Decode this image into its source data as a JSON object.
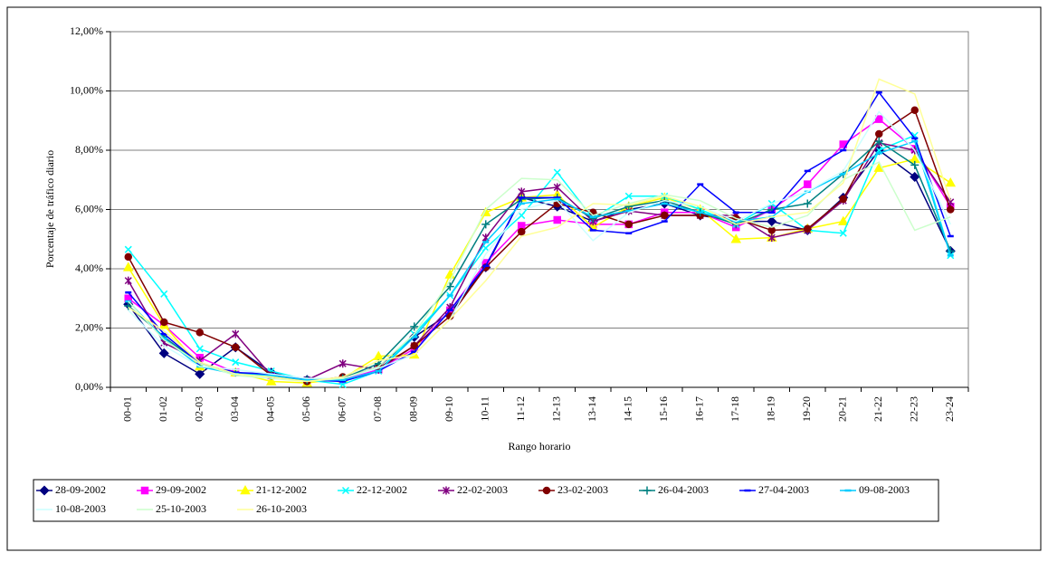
{
  "chart_data": {
    "type": "line",
    "y_label": "Porcentaje de tráfico diario",
    "x_label": "Rango horario",
    "categories": [
      "00-01",
      "01-02",
      "02-03",
      "03-04",
      "04-05",
      "05-06",
      "06-07",
      "07-08",
      "08-09",
      "09-10",
      "10-11",
      "11-12",
      "12-13",
      "13-14",
      "14-15",
      "15-16",
      "16-17",
      "17-18",
      "18-19",
      "19-20",
      "20-21",
      "21-22",
      "22-23",
      "23-24"
    ],
    "ylim": [
      0,
      12
    ],
    "yticks": [
      {
        "value": 0,
        "label": "0,00%"
      },
      {
        "value": 2,
        "label": "2,00%"
      },
      {
        "value": 4,
        "label": "4,00%"
      },
      {
        "value": 6,
        "label": "6,00%"
      },
      {
        "value": 8,
        "label": "8,00%"
      },
      {
        "value": 10,
        "label": "10,00%"
      },
      {
        "value": 12,
        "label": "12,00%"
      }
    ],
    "grid": true,
    "legend": "bottom",
    "series": [
      {
        "name": "28-09-2002",
        "color": "#000080",
        "marker": "diamond",
        "values": [
          2.8,
          1.15,
          0.45,
          1.35,
          0.5,
          0.25,
          0.3,
          0.7,
          1.7,
          2.5,
          4.05,
          6.4,
          6.1,
          5.6,
          6.0,
          6.2,
          5.8,
          5.6,
          5.6,
          5.3,
          6.4,
          8.0,
          7.1,
          4.6
        ]
      },
      {
        "name": "29-09-2002",
        "color": "#ff00ff",
        "marker": "square",
        "values": [
          3.0,
          2.1,
          1.0,
          0.5,
          0.4,
          0.2,
          0.25,
          0.6,
          1.3,
          2.6,
          4.2,
          5.45,
          5.65,
          5.5,
          5.5,
          5.9,
          5.9,
          5.4,
          6.0,
          6.85,
          8.2,
          9.05,
          8.05,
          6.1
        ]
      },
      {
        "name": "21-12-2002",
        "color": "#ffff00",
        "marker": "triangle",
        "values": [
          4.05,
          2.1,
          0.7,
          0.5,
          0.2,
          0.15,
          0.3,
          1.05,
          1.1,
          3.8,
          5.9,
          6.4,
          6.5,
          5.4,
          6.1,
          6.4,
          6.0,
          5.0,
          5.05,
          5.35,
          5.6,
          7.4,
          7.7,
          6.9
        ]
      },
      {
        "name": "22-12-2002",
        "color": "#00ffff",
        "marker": "x",
        "values": [
          4.65,
          3.15,
          1.3,
          0.85,
          0.55,
          0.25,
          0.1,
          0.55,
          1.8,
          3.1,
          4.7,
          5.8,
          7.25,
          5.7,
          6.45,
          6.45,
          6.0,
          5.5,
          6.2,
          5.3,
          5.2,
          8.0,
          8.5,
          4.45
        ]
      },
      {
        "name": "22-02-2003",
        "color": "#800080",
        "marker": "star",
        "values": [
          3.6,
          1.5,
          0.9,
          1.8,
          0.4,
          0.25,
          0.8,
          0.6,
          1.4,
          2.7,
          5.05,
          6.6,
          6.75,
          5.6,
          5.95,
          5.8,
          5.8,
          5.8,
          5.05,
          5.3,
          6.3,
          8.25,
          8.0,
          6.25
        ]
      },
      {
        "name": "23-02-2003",
        "color": "#800000",
        "marker": "circle",
        "values": [
          4.4,
          2.2,
          1.85,
          1.35,
          0.4,
          0.2,
          0.35,
          0.65,
          1.4,
          2.4,
          4.05,
          5.25,
          6.2,
          5.9,
          5.5,
          5.8,
          5.8,
          5.7,
          5.3,
          5.35,
          6.35,
          8.55,
          9.35,
          6.0
        ]
      },
      {
        "name": "26-04-2003",
        "color": "#008080",
        "marker": "plus",
        "values": [
          2.75,
          1.7,
          0.8,
          0.5,
          0.4,
          0.25,
          0.3,
          0.8,
          2.05,
          3.4,
          5.5,
          6.35,
          6.4,
          5.7,
          6.1,
          6.3,
          5.9,
          5.5,
          6.0,
          6.2,
          7.2,
          8.3,
          7.5,
          4.6
        ]
      },
      {
        "name": "27-04-2003",
        "color": "#0000ff",
        "marker": "dash",
        "values": [
          3.2,
          1.8,
          0.8,
          0.5,
          0.45,
          0.25,
          0.2,
          0.55,
          1.2,
          2.6,
          4.1,
          6.4,
          6.4,
          5.3,
          5.2,
          5.6,
          6.85,
          5.9,
          5.9,
          7.3,
          8.0,
          9.95,
          8.4,
          5.1
        ]
      },
      {
        "name": "09-08-2003",
        "color": "#00ccff",
        "marker": "dash",
        "values": [
          2.9,
          1.65,
          0.7,
          0.45,
          0.4,
          0.25,
          0.25,
          0.55,
          1.7,
          3.1,
          4.9,
          6.2,
          6.35,
          5.75,
          5.95,
          6.2,
          5.9,
          5.6,
          5.75,
          6.6,
          7.2,
          7.9,
          8.3,
          4.45
        ]
      },
      {
        "name": "10-08-2003",
        "color": "#ccffff",
        "marker": "none",
        "values": [
          2.6,
          1.4,
          0.7,
          0.6,
          0.45,
          0.3,
          0.3,
          0.65,
          1.1,
          2.3,
          4.5,
          6.0,
          6.3,
          4.95,
          5.9,
          6.3,
          6.1,
          5.6,
          6.2,
          6.6,
          7.3,
          9.3,
          8.0,
          5.5
        ]
      },
      {
        "name": "25-10-2003",
        "color": "#ccffcc",
        "marker": "none",
        "values": [
          2.9,
          1.6,
          0.8,
          0.4,
          0.3,
          0.2,
          0.3,
          0.7,
          1.8,
          3.6,
          6.0,
          7.05,
          7.0,
          5.8,
          6.2,
          6.5,
          6.3,
          5.7,
          5.4,
          5.8,
          7.0,
          7.6,
          5.3,
          5.75
        ]
      },
      {
        "name": "26-10-2003",
        "color": "#ffff99",
        "marker": "none",
        "values": [
          2.7,
          1.9,
          0.85,
          0.45,
          0.35,
          0.2,
          0.35,
          0.9,
          1.1,
          2.3,
          3.6,
          5.1,
          5.4,
          6.2,
          6.15,
          6.45,
          6.1,
          5.5,
          5.75,
          5.9,
          6.9,
          10.4,
          9.9,
          6.3
        ]
      }
    ]
  }
}
